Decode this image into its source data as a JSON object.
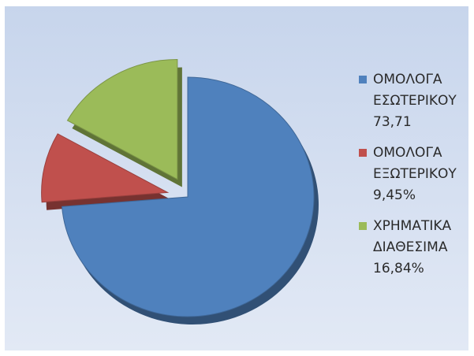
{
  "chart_data": {
    "type": "pie",
    "style": "3d-exploded",
    "title": "",
    "slices": [
      {
        "label_lines": [
          "ΟΜΟΛΟΓΑ",
          "ΕΣΩΤΕΡΙΚΟΥ",
          "73,71"
        ],
        "value": 73.71,
        "color": "#4f81bd"
      },
      {
        "label_lines": [
          "ΟΜΟΛΟΓΑ",
          "ΕΞΩΤΕΡΙΚΟΥ",
          "9,45%"
        ],
        "value": 9.45,
        "color": "#c0504d"
      },
      {
        "label_lines": [
          "ΧΡΗΜΑΤΙΚΑ",
          "ΔΙΑΘΕΣΙΜΑ",
          "16,84%"
        ],
        "value": 16.84,
        "color": "#9bbb59"
      }
    ],
    "legend_position": "right"
  }
}
